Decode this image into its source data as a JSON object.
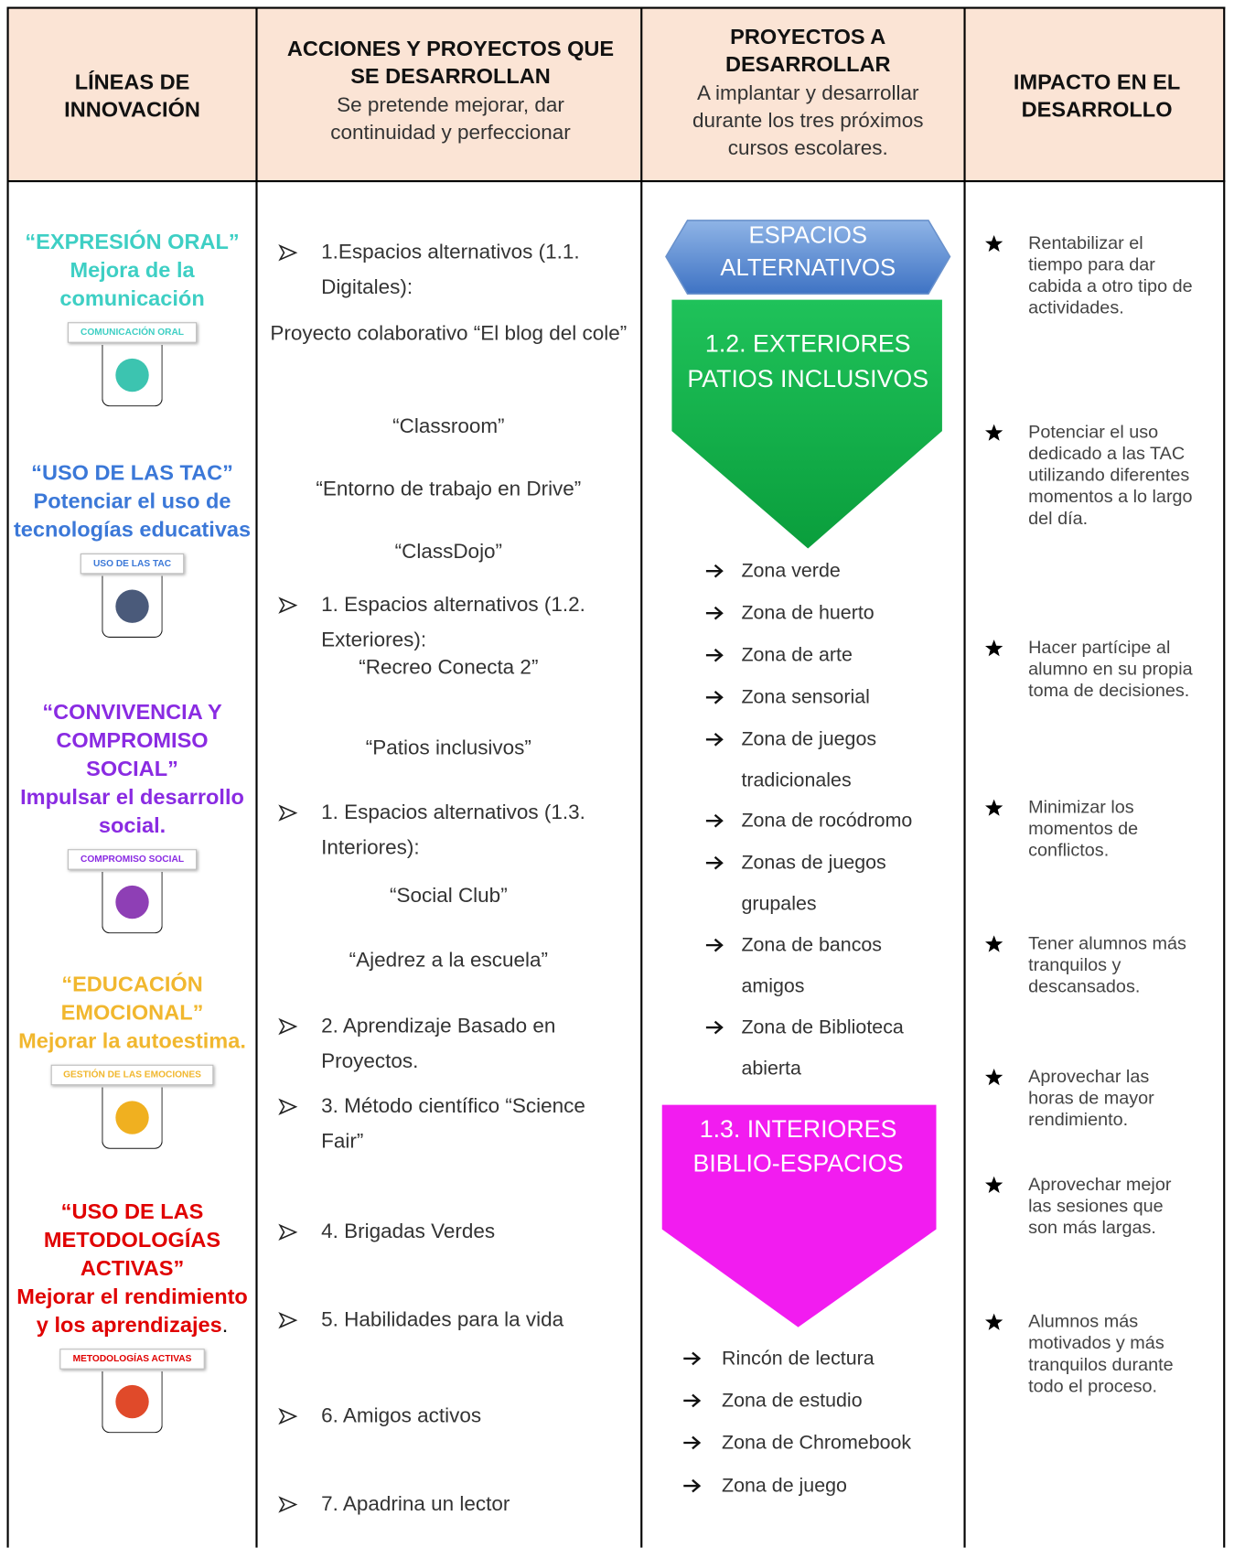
{
  "header": {
    "columns": [
      {
        "title": "LÍNEAS DE INNOVACIÓN"
      },
      {
        "title": "ACCIONES Y PROYECTOS QUE SE DESARROLLAN",
        "subtitle": "Se pretende mejorar, dar continuidad y perfeccionar"
      },
      {
        "title": "PROYECTOS A DESARROLLAR",
        "subtitle": "A implantar y desarrollar durante los tres próximos cursos escolares."
      },
      {
        "title": "IMPACTO EN EL DESARROLLO"
      }
    ]
  },
  "lines": [
    {
      "title": "“EXPRESIÓN ORAL”",
      "subtitle": "Mejora de la comunicación",
      "badge": "COMUNICACIÓN ORAL"
    },
    {
      "title": "“USO DE LAS TAC”",
      "subtitle": "Potenciar el uso de tecnologías educativas",
      "badge": "USO DE LAS TAC"
    },
    {
      "title": "“CONVIVENCIA Y COMPROMISO SOCIAL”",
      "subtitle": "Impulsar el desarrollo social.",
      "badge": "COMPROMISO SOCIAL"
    },
    {
      "title": "“EDUCACIÓN EMOCIONAL”",
      "subtitle": "Mejorar la autoestima.",
      "badge": "GESTIÓN DE LAS EMOCIONES"
    },
    {
      "title": "“USO DE LAS METODOLOGÍAS ACTIVAS”",
      "subtitle": "Mejorar el rendimiento y los aprendizajes",
      "punctuation": ".",
      "badge": "METODOLOGÍAS ACTIVAS"
    }
  ],
  "actions": [
    "1.Espacios alternativos (1.1. Digitales):",
    "Proyecto colaborativo “El blog del cole”",
    "“Classroom”",
    "“Entorno de trabajo  en Drive”",
    "“ClassDojo”",
    "1. Espacios alternativos (1.2. Exteriores):",
    "“Recreo Conecta 2”",
    "“Patios inclusivos”",
    "1. Espacios alternativos (1.3. Interiores):",
    "“Social Club”",
    "“Ajedrez a la escuela”",
    "2. Aprendizaje Basado en Proyectos.",
    "3. Método científico “Science Fair”",
    "4. Brigadas Verdes",
    "5. Habilidades para la vida",
    "6. Amigos activos",
    "7. Apadrina un lector"
  ],
  "projects": {
    "banner": "ESPACIOS ALTERNATIVOS",
    "exteriores": {
      "title": "1.2. EXTERIORES PATIOS INCLUSIVOS",
      "items": [
        "Zona verde",
        "Zona de huerto",
        "Zona de arte",
        "Zona sensorial",
        "Zona de juegos tradicionales",
        "Zona de rocódromo",
        "Zonas de juegos grupales",
        "Zona de bancos amigos",
        "Zona de Biblioteca abierta"
      ]
    },
    "interiores": {
      "title": "1.3. INTERIORES BIBLIO-ESPACIOS",
      "items": [
        "Rincón de lectura",
        "Zona de estudio",
        "Zona de Chromebook",
        "Zona de juego"
      ]
    }
  },
  "impact": [
    "Rentabilizar el tiempo para dar cabida a otro tipo de actividades.",
    "Potenciar el uso dedicado a las TAC utilizando diferentes momentos a lo largo del día.",
    "Hacer partícipe al alumno en su propia toma de decisiones.",
    "Minimizar los momentos de conflictos.",
    "Tener alumnos más tranquilos y descansados.",
    "Aprovechar las horas de mayor rendimiento.",
    "Aprovechar mejor las sesiones que son más largas.",
    "Alumnos más motivados y más tranquilos durante todo el proceso."
  ]
}
